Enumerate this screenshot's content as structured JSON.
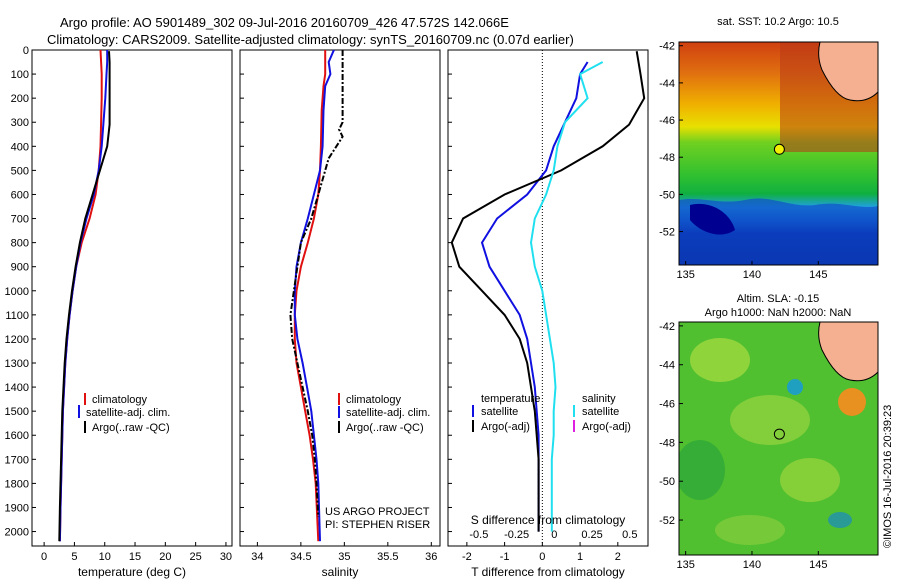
{
  "header": {
    "line1": "Argo profile: AO 5901489_302 09-Jul-2016 20160709_426 47.572S 142.066E",
    "line2": "Climatology: CARS2009. Satellite-adjusted climatology: synTS_20160709.nc (0.07d earlier)"
  },
  "colors": {
    "climatology": "#e01010",
    "satellite": "#1010e0",
    "argo": "#000000",
    "satellite_salinity": "#20e0f0",
    "argo_adj_salinity": "#e020e0"
  },
  "credits": {
    "project": "US ARGO PROJECT",
    "pi": "PI: STEPHEN RISER",
    "stamp": "©IMOS 16-Jul-2016 20:39:23"
  },
  "chart_data": [
    {
      "type": "line",
      "id": "temperature",
      "xlabel": "temperature (deg C)",
      "xlim": [
        -2,
        31
      ],
      "ylim": [
        2060,
        0
      ],
      "xticks": [
        0,
        5,
        10,
        15,
        20,
        25,
        30
      ],
      "yticks": [
        0,
        100,
        200,
        300,
        400,
        500,
        600,
        700,
        800,
        900,
        1000,
        1100,
        1200,
        1300,
        1400,
        1500,
        1600,
        1700,
        1800,
        1900,
        2000
      ],
      "legend": [
        {
          "name": "climatology",
          "color": "#e01010"
        },
        {
          "name": "satellite-adj. clim.",
          "color": "#1010e0"
        },
        {
          "name": "Argo(..raw -QC)",
          "color": "#000000"
        }
      ],
      "series": [
        {
          "name": "climatology",
          "color": "#e01010",
          "dash": false,
          "x": [
            9.3,
            9.4,
            9.5,
            9.5,
            9.4,
            9.3,
            9.0,
            8.5,
            7.5,
            6.2,
            5.3,
            4.7,
            4.2,
            3.8,
            3.5,
            3.3,
            3.1,
            3.0,
            2.9,
            2.8,
            2.7,
            2.6
          ],
          "y": [
            0,
            50,
            100,
            200,
            300,
            400,
            500,
            600,
            700,
            800,
            900,
            1000,
            1100,
            1200,
            1300,
            1400,
            1500,
            1600,
            1700,
            1800,
            1900,
            2040
          ]
        },
        {
          "name": "satellite-adj. clim.",
          "color": "#1010e0",
          "dash": false,
          "x": [
            10.4,
            10.4,
            10.3,
            10.1,
            9.8,
            9.5,
            9.0,
            8.2,
            7.0,
            6.0,
            5.3,
            4.7,
            4.2,
            3.8,
            3.5,
            3.3,
            3.1,
            3.0,
            2.9,
            2.8,
            2.7,
            2.6
          ],
          "y": [
            0,
            50,
            100,
            200,
            300,
            400,
            500,
            600,
            700,
            800,
            900,
            1000,
            1100,
            1200,
            1300,
            1400,
            1500,
            1600,
            1700,
            1800,
            1900,
            2040
          ]
        },
        {
          "name": "Argo(..raw -QC)",
          "color": "#000000",
          "dash": false,
          "x": [
            10.7,
            10.8,
            10.8,
            10.8,
            10.8,
            10.4,
            9.2,
            8.0,
            6.8,
            5.9,
            5.2,
            4.6,
            4.1,
            3.7,
            3.4,
            3.2,
            3.0,
            2.9,
            2.8,
            2.7,
            2.6,
            2.5
          ],
          "y": [
            5,
            50,
            100,
            200,
            310,
            400,
            500,
            600,
            700,
            800,
            900,
            1000,
            1100,
            1200,
            1300,
            1400,
            1500,
            1600,
            1700,
            1800,
            1900,
            2040
          ]
        }
      ]
    },
    {
      "type": "line",
      "id": "salinity",
      "xlabel": "salinity",
      "xlim": [
        33.8,
        36.1
      ],
      "ylim": [
        2060,
        0
      ],
      "xticks": [
        34,
        34.5,
        35,
        35.5,
        36
      ],
      "legend": [
        {
          "name": "climatology",
          "color": "#e01010"
        },
        {
          "name": "satellite-adj. clim.",
          "color": "#1010e0"
        },
        {
          "name": "Argo(..raw -QC)",
          "color": "#000000"
        }
      ],
      "series": [
        {
          "name": "climatology",
          "color": "#e01010",
          "dash": false,
          "x": [
            34.78,
            34.78,
            34.76,
            34.74,
            34.73,
            34.72,
            34.7,
            34.65,
            34.58,
            34.5,
            34.45,
            34.43,
            34.43,
            34.45,
            34.5,
            34.55,
            34.6,
            34.64,
            34.67,
            34.7
          ],
          "y": [
            0,
            100,
            150,
            250,
            400,
            500,
            600,
            700,
            800,
            900,
            1000,
            1100,
            1200,
            1300,
            1400,
            1500,
            1600,
            1700,
            1800,
            2040
          ]
        },
        {
          "name": "satellite-adj. clim.",
          "color": "#1010e0",
          "dash": false,
          "x": [
            34.88,
            34.82,
            34.84,
            34.78,
            34.76,
            34.75,
            34.72,
            34.65,
            34.58,
            34.5,
            34.45,
            34.43,
            34.43,
            34.46,
            34.52,
            34.57,
            34.62,
            34.65,
            34.68,
            34.7,
            34.72
          ],
          "y": [
            0,
            50,
            100,
            150,
            250,
            400,
            500,
            600,
            700,
            800,
            900,
            1000,
            1100,
            1200,
            1300,
            1400,
            1500,
            1600,
            1700,
            1800,
            2040
          ]
        },
        {
          "name": "Argo(..raw -QC)",
          "color": "#000000",
          "dash": true,
          "x": [
            34.98,
            34.98,
            34.98,
            34.98,
            34.94,
            34.98,
            34.82,
            34.7,
            34.62,
            34.5,
            34.42,
            34.38,
            34.4,
            34.46,
            34.52,
            34.58,
            34.63,
            34.66,
            34.68,
            34.7
          ],
          "y": [
            0,
            100,
            200,
            300,
            330,
            360,
            450,
            600,
            700,
            800,
            1000,
            1100,
            1200,
            1300,
            1400,
            1500,
            1600,
            1700,
            1800,
            1940
          ]
        }
      ]
    },
    {
      "type": "line",
      "id": "difference",
      "xlabel": "T difference from climatology",
      "top_label": "S difference from climatology",
      "xlim": [
        -2.5,
        2.8
      ],
      "ylim": [
        2060,
        0
      ],
      "xticks": [
        -2,
        -1,
        0,
        1,
        2
      ],
      "top_ticks": [
        "-0.5",
        "-0.25",
        "0",
        "0.25",
        "0.5"
      ],
      "legend_temperature_title": "temperature",
      "legend_salinity_title": "salinity",
      "legend_temperature": [
        {
          "name": "satellite",
          "color": "#1010e0"
        },
        {
          "name": "Argo(-adj)",
          "color": "#000000"
        }
      ],
      "legend_salinity": [
        {
          "name": "satellite",
          "color": "#20e0f0"
        },
        {
          "name": "Argo(-adj)",
          "color": "#e020e0"
        }
      ],
      "series": [
        {
          "name": "T satellite",
          "color": "#1010e0",
          "x": [
            1.2,
            1.0,
            0.9,
            0.6,
            0.3,
            0.1,
            -0.4,
            -1.2,
            -1.6,
            -1.4,
            -1.0,
            -0.6,
            -0.4,
            -0.3,
            -0.2,
            -0.15,
            -0.1,
            -0.1,
            -0.1,
            -0.1
          ],
          "y": [
            50,
            100,
            200,
            300,
            400,
            500,
            600,
            700,
            800,
            900,
            1000,
            1100,
            1200,
            1300,
            1400,
            1500,
            1600,
            1700,
            1800,
            2000
          ]
        },
        {
          "name": "T Argo",
          "color": "#000000",
          "x": [
            2.5,
            2.6,
            2.7,
            2.3,
            1.6,
            0.5,
            -1.0,
            -2.1,
            -2.4,
            -2.2,
            -1.6,
            -1.0,
            -0.6,
            -0.4,
            -0.3,
            -0.2,
            -0.15,
            -0.1,
            -0.1,
            -0.1
          ],
          "y": [
            5,
            100,
            200,
            310,
            400,
            500,
            600,
            700,
            800,
            900,
            1000,
            1100,
            1200,
            1300,
            1400,
            1500,
            1600,
            1700,
            1800,
            2000
          ]
        },
        {
          "name": "S satellite",
          "color": "#20e0f0",
          "x": [
            1.6,
            1.0,
            1.2,
            0.6,
            0.4,
            0.3,
            0.1,
            -0.2,
            -0.3,
            -0.2,
            0.0,
            0.1,
            0.2,
            0.3,
            0.35,
            0.3,
            0.3,
            0.25,
            0.25,
            0.25
          ],
          "y": [
            50,
            100,
            200,
            300,
            400,
            500,
            600,
            700,
            800,
            900,
            1000,
            1100,
            1200,
            1300,
            1400,
            1500,
            1600,
            1700,
            1800,
            2000
          ]
        }
      ]
    },
    {
      "type": "heatmap",
      "id": "sst_map",
      "title": "sat. SST: 10.2  Argo: 10.5",
      "xticks": [
        135,
        140,
        145
      ],
      "yticks": [
        -42,
        -44,
        -46,
        -48,
        -50,
        -52
      ],
      "xlim": [
        134.5,
        149.5
      ],
      "ylim": [
        -53.8,
        -41.8
      ],
      "argo_position": {
        "lon": 142.066,
        "lat": -47.572
      }
    },
    {
      "type": "heatmap",
      "id": "sla_map",
      "title_line1": "Altim. SLA: -0.15",
      "title_line2": "Argo h1000: NaN h2000: NaN",
      "xticks": [
        135,
        140,
        145
      ],
      "yticks": [
        -42,
        -44,
        -46,
        -48,
        -50,
        -52
      ],
      "xlim": [
        134.5,
        149.5
      ],
      "ylim": [
        -53.8,
        -41.8
      ],
      "argo_position": {
        "lon": 142.066,
        "lat": -47.572
      }
    }
  ]
}
